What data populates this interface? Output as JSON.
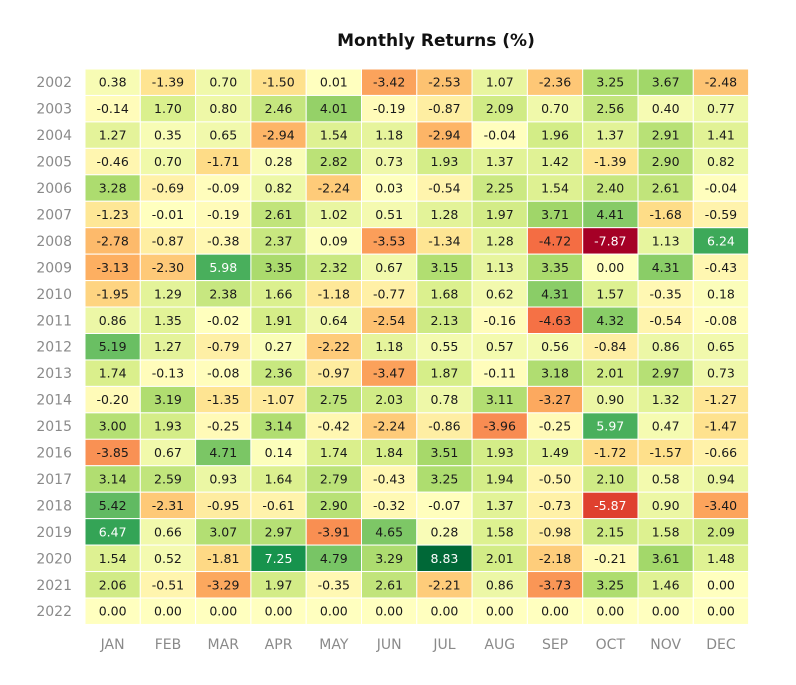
{
  "chart_data": {
    "type": "heatmap",
    "title": "Monthly Returns (%)",
    "xlabel": "",
    "ylabel": "",
    "grid": false,
    "legend": "none",
    "colormap": "RdYlGn",
    "color_range": [
      -7.87,
      8.83
    ],
    "x": [
      "JAN",
      "FEB",
      "MAR",
      "APR",
      "MAY",
      "JUN",
      "JUL",
      "AUG",
      "SEP",
      "OCT",
      "NOV",
      "DEC"
    ],
    "y": [
      "2002",
      "2003",
      "2004",
      "2005",
      "2006",
      "2007",
      "2008",
      "2009",
      "2010",
      "2011",
      "2012",
      "2013",
      "2014",
      "2015",
      "2016",
      "2017",
      "2018",
      "2019",
      "2020",
      "2021",
      "2022"
    ],
    "values": [
      [
        0.38,
        -1.39,
        0.7,
        -1.5,
        0.01,
        -3.42,
        -2.53,
        1.07,
        -2.36,
        3.25,
        3.67,
        -2.48
      ],
      [
        -0.14,
        1.7,
        0.8,
        2.46,
        4.01,
        -0.19,
        -0.87,
        2.09,
        0.7,
        2.56,
        0.4,
        0.77
      ],
      [
        1.27,
        0.35,
        0.65,
        -2.94,
        1.54,
        1.18,
        -2.94,
        -0.04,
        1.96,
        1.37,
        2.91,
        1.41
      ],
      [
        -0.46,
        0.7,
        -1.71,
        0.28,
        2.82,
        0.73,
        1.93,
        1.37,
        1.42,
        -1.39,
        2.9,
        0.82
      ],
      [
        3.28,
        -0.69,
        -0.09,
        0.82,
        -2.24,
        0.03,
        -0.54,
        2.25,
        1.54,
        2.4,
        2.61,
        -0.04
      ],
      [
        -1.23,
        -0.01,
        -0.19,
        2.61,
        1.02,
        0.51,
        1.28,
        1.97,
        3.71,
        4.41,
        -1.68,
        -0.59
      ],
      [
        -2.78,
        -0.87,
        -0.38,
        2.37,
        0.09,
        -3.53,
        -1.34,
        1.28,
        -4.72,
        -7.87,
        1.13,
        6.24
      ],
      [
        -3.13,
        -2.3,
        5.98,
        3.35,
        2.32,
        0.67,
        3.15,
        1.13,
        3.35,
        0.0,
        4.31,
        -0.43
      ],
      [
        -1.95,
        1.29,
        2.38,
        1.66,
        -1.18,
        -0.77,
        1.68,
        0.62,
        4.31,
        1.57,
        -0.35,
        0.18
      ],
      [
        0.86,
        1.35,
        -0.02,
        1.91,
        0.64,
        -2.54,
        2.13,
        -0.16,
        -4.63,
        4.32,
        -0.54,
        -0.08
      ],
      [
        5.19,
        1.27,
        -0.79,
        0.27,
        -2.22,
        1.18,
        0.55,
        0.57,
        0.56,
        -0.84,
        0.86,
        0.65
      ],
      [
        1.74,
        -0.13,
        -0.08,
        2.36,
        -0.97,
        -3.47,
        1.87,
        -0.11,
        3.18,
        2.01,
        2.97,
        0.73
      ],
      [
        -0.2,
        3.19,
        -1.35,
        -1.07,
        2.75,
        2.03,
        0.78,
        3.11,
        -3.27,
        0.9,
        1.32,
        -1.27
      ],
      [
        3.0,
        1.93,
        -0.25,
        3.14,
        -0.42,
        -2.24,
        -0.86,
        -3.96,
        -0.25,
        5.97,
        0.47,
        -1.47
      ],
      [
        -3.85,
        0.67,
        4.71,
        0.14,
        1.74,
        1.84,
        3.51,
        1.93,
        1.49,
        -1.72,
        -1.57,
        -0.66
      ],
      [
        3.14,
        2.59,
        0.93,
        1.64,
        2.79,
        -0.43,
        3.25,
        1.94,
        -0.5,
        2.1,
        0.58,
        0.94
      ],
      [
        5.42,
        -2.31,
        -0.95,
        -0.61,
        2.9,
        -0.32,
        -0.07,
        1.37,
        -0.73,
        -5.87,
        0.9,
        -3.4
      ],
      [
        6.47,
        0.66,
        3.07,
        2.97,
        -3.91,
        4.65,
        0.28,
        1.58,
        -0.98,
        2.15,
        1.58,
        2.09
      ],
      [
        1.54,
        0.52,
        -1.81,
        7.25,
        4.79,
        3.29,
        8.83,
        2.01,
        -2.18,
        -0.21,
        3.61,
        1.48
      ],
      [
        2.06,
        -0.51,
        -3.29,
        1.97,
        -0.35,
        2.61,
        -2.21,
        0.86,
        -3.73,
        3.25,
        1.46,
        0.0
      ],
      [
        0.0,
        0.0,
        0.0,
        0.0,
        0.0,
        0.0,
        0.0,
        0.0,
        0.0,
        0.0,
        0.0,
        0.0
      ]
    ]
  }
}
